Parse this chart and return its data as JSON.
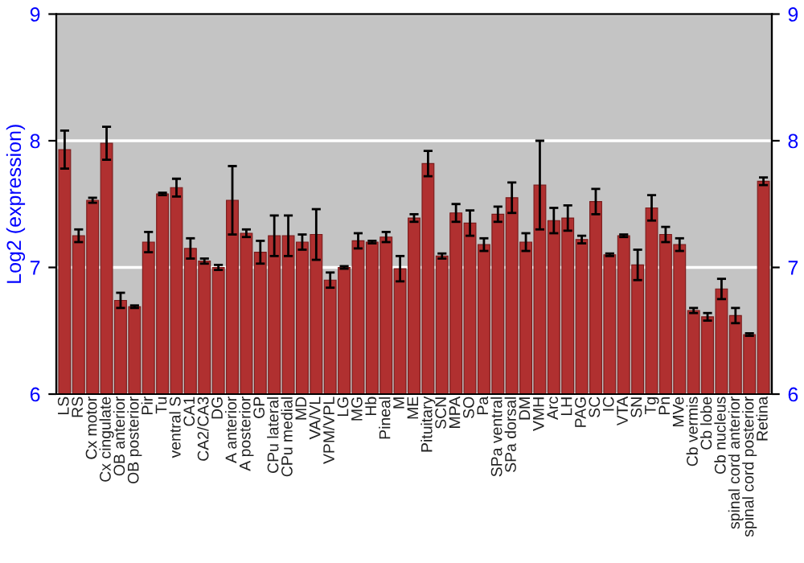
{
  "chart_data": {
    "type": "bar",
    "ylabel": "Log2 (expression)",
    "categories": [
      "LS",
      "RS",
      "Cx motor",
      "Cx cingulate",
      "OB anterior",
      "OB posterior",
      "Pir",
      "Tu",
      "ventral S",
      "CA1",
      "CA2/CA3",
      "DG",
      "A anterior",
      "A posterior",
      "GP",
      "CPu lateral",
      "CPu medial",
      "MD",
      "VA/VL",
      "VPM/VPL",
      "LG",
      "MG",
      "Hb",
      "Pineal",
      "M",
      "ME",
      "Pituitary",
      "SCN",
      "MPA",
      "SO",
      "Pa",
      "SPa ventral",
      "SPa dorsal",
      "DM",
      "VMH",
      "Arc",
      "LH",
      "PAG",
      "SC",
      "IC",
      "VTA",
      "SN",
      "Tg",
      "Pn",
      "MVe",
      "Cb vermis",
      "Cb lobe",
      "Cb nucleus",
      "spinal cord anterior",
      "spinal cord posterior",
      "Retina"
    ],
    "values": [
      7.93,
      7.25,
      7.53,
      7.98,
      6.74,
      6.69,
      7.2,
      7.58,
      7.63,
      7.15,
      7.05,
      7.0,
      7.53,
      7.27,
      7.12,
      7.25,
      7.25,
      7.2,
      7.26,
      6.9,
      7.0,
      7.21,
      7.2,
      7.24,
      6.99,
      7.39,
      7.82,
      7.09,
      7.43,
      7.35,
      7.18,
      7.42,
      7.55,
      7.2,
      7.65,
      7.37,
      7.39,
      7.22,
      7.52,
      7.1,
      7.25,
      7.02,
      7.47,
      7.26,
      7.18,
      6.66,
      6.61,
      6.83,
      6.62,
      6.47,
      7.68
    ],
    "errors": [
      0.15,
      0.05,
      0.02,
      0.13,
      0.06,
      0.01,
      0.08,
      0.01,
      0.07,
      0.08,
      0.02,
      0.02,
      0.27,
      0.03,
      0.09,
      0.16,
      0.16,
      0.06,
      0.2,
      0.06,
      0.01,
      0.06,
      0.01,
      0.04,
      0.1,
      0.03,
      0.1,
      0.02,
      0.07,
      0.1,
      0.05,
      0.06,
      0.12,
      0.07,
      0.35,
      0.1,
      0.1,
      0.03,
      0.1,
      0.01,
      0.01,
      0.12,
      0.1,
      0.06,
      0.05,
      0.02,
      0.03,
      0.08,
      0.06,
      0.01,
      0.03
    ],
    "color": "#b03030",
    "ylim": [
      6,
      9
    ],
    "yticks": [
      6,
      7,
      8,
      9
    ],
    "y2lim": [
      6,
      9
    ],
    "y2ticks": [
      6,
      7,
      8,
      9
    ],
    "grid": "y"
  }
}
